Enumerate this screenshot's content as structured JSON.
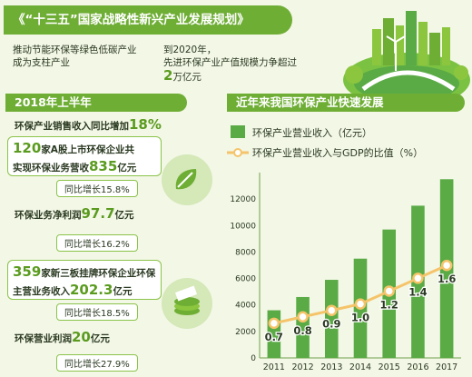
{
  "banner": {
    "title": "《“十三五”国家战略性新兴产业发展规划》"
  },
  "intro": {
    "left": {
      "line1": "推动节能环保等绿色低碳产业",
      "line2": "成为支柱产业"
    },
    "right": {
      "line1": "到2020年，",
      "line2": "先进环保产业产值规模力争超过",
      "big": "2",
      "unit": "万亿元"
    }
  },
  "left_panel": {
    "header": "2018年上半年",
    "sales": {
      "text": "环保产业销售收入同比增加",
      "value": "18%"
    },
    "listed": {
      "count": "120",
      "text1": "家A股上市环保企业共",
      "text2": "实现环保业务营收",
      "value": "835",
      "unit": "亿元",
      "growth": "同比增长15.8%"
    },
    "listed_profit": {
      "text": "环保业务净利润",
      "value": "97.7",
      "unit": "亿元",
      "growth": "同比增长16.2%"
    },
    "neeq": {
      "count": "359",
      "text1": "家新三板挂牌环保企业环保",
      "text2": "主营业务收入",
      "value": "202.3",
      "unit": "亿元",
      "growth": "同比增长18.5%"
    },
    "neeq_profit": {
      "text": "环保营业利润",
      "value": "20",
      "unit": "亿元",
      "growth": "同比增长27.9%"
    }
  },
  "right_panel": {
    "header": "近年来我国环保产业快速发展"
  },
  "chart_data": {
    "type": "bar",
    "categories": [
      "2011",
      "2012",
      "2013",
      "2014",
      "2015",
      "2016",
      "2017"
    ],
    "series": [
      {
        "name": "环保产业营业收入（亿元）",
        "type": "bar",
        "values": [
          3600,
          4600,
          5900,
          7500,
          9700,
          11500,
          13500
        ]
      },
      {
        "name": "环保产业营业收入与GDP的比值（%）",
        "type": "line",
        "values": [
          0.7,
          0.8,
          0.9,
          1.0,
          1.2,
          1.4,
          1.6
        ]
      }
    ],
    "yticks": [
      "0",
      "2000",
      "4000",
      "6000",
      "8000",
      "10000",
      "12000"
    ],
    "ylim": [
      0,
      14000
    ],
    "colors": {
      "bar": "#5aab46",
      "line": "#f5c46a",
      "marker": "#ffffff",
      "axis": "#6fa04a"
    }
  }
}
